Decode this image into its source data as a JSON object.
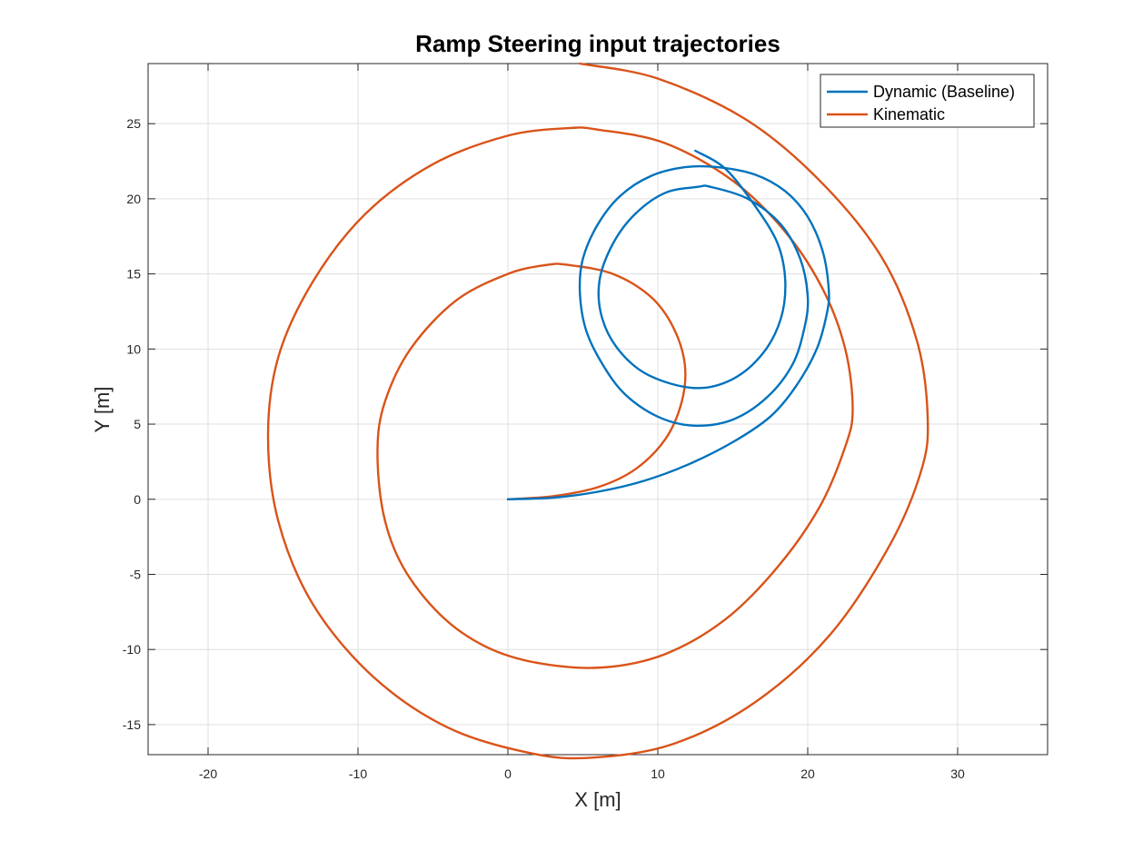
{
  "chart_data": {
    "type": "line",
    "title": "Ramp Steering input trajectories",
    "xlabel": "X [m]",
    "ylabel": "Y [m]",
    "xlim": [
      -24,
      36
    ],
    "ylim": [
      -17,
      29
    ],
    "xticks": [
      -20,
      -10,
      0,
      10,
      20,
      30
    ],
    "yticks": [
      -15,
      -10,
      -5,
      0,
      5,
      10,
      15,
      20,
      25
    ],
    "grid": true,
    "legend_position": "top-right",
    "series": [
      {
        "name": "Dynamic (Baseline)",
        "color": "#0072BD",
        "points": [
          [
            0,
            0
          ],
          [
            3,
            0.1
          ],
          [
            6,
            0.5
          ],
          [
            9,
            1.2
          ],
          [
            12,
            2.3
          ],
          [
            15,
            3.8
          ],
          [
            17.5,
            5.5
          ],
          [
            19.2,
            7.5
          ],
          [
            20.6,
            10.0
          ],
          [
            21.3,
            12.5
          ],
          [
            21.4,
            14.0
          ],
          [
            21.0,
            16.5
          ],
          [
            20.0,
            18.8
          ],
          [
            18.5,
            20.5
          ],
          [
            16.5,
            21.6
          ],
          [
            14.0,
            22.1
          ],
          [
            11.8,
            22.1
          ],
          [
            9.5,
            21.5
          ],
          [
            7.5,
            20.2
          ],
          [
            6.0,
            18.3
          ],
          [
            5.0,
            16.0
          ],
          [
            4.8,
            13.8
          ],
          [
            5.2,
            11.3
          ],
          [
            6.3,
            9.0
          ],
          [
            7.8,
            7.0
          ],
          [
            10.0,
            5.5
          ],
          [
            12.4,
            4.9
          ],
          [
            15.0,
            5.3
          ],
          [
            17.3,
            6.8
          ],
          [
            19.0,
            9.0
          ],
          [
            19.8,
            11.5
          ],
          [
            20.0,
            13.5
          ],
          [
            19.5,
            16.0
          ],
          [
            18.2,
            18.3
          ],
          [
            16.0,
            20.0
          ],
          [
            13.5,
            20.8
          ],
          [
            12.7,
            20.8
          ],
          [
            10.5,
            20.4
          ],
          [
            8.5,
            19.0
          ],
          [
            7.0,
            17.0
          ],
          [
            6.1,
            14.5
          ],
          [
            6.3,
            12.0
          ],
          [
            7.5,
            9.8
          ],
          [
            9.5,
            8.2
          ],
          [
            12.5,
            7.4
          ],
          [
            15.0,
            8.0
          ],
          [
            17.0,
            9.7
          ],
          [
            18.2,
            12.0
          ],
          [
            18.5,
            14.5
          ],
          [
            18.0,
            17.0
          ],
          [
            16.5,
            19.5
          ],
          [
            14.5,
            22.0
          ],
          [
            12.5,
            23.2
          ]
        ]
      },
      {
        "name": "Kinematic",
        "color": "#D95319",
        "points": [
          [
            0,
            0
          ],
          [
            3,
            0.2
          ],
          [
            6,
            0.8
          ],
          [
            8.5,
            2.0
          ],
          [
            10.5,
            4.0
          ],
          [
            11.6,
            6.5
          ],
          [
            11.8,
            9.0
          ],
          [
            11.0,
            11.5
          ],
          [
            9.5,
            13.5
          ],
          [
            7.0,
            15.0
          ],
          [
            4.0,
            15.6
          ],
          [
            2.6,
            15.6
          ],
          [
            0,
            15.0
          ],
          [
            -3.5,
            13.2
          ],
          [
            -6.5,
            10.0
          ],
          [
            -8.2,
            6.5
          ],
          [
            -8.7,
            3.3
          ],
          [
            -8.3,
            -1.0
          ],
          [
            -7.0,
            -4.5
          ],
          [
            -4.5,
            -7.7
          ],
          [
            -1.5,
            -9.8
          ],
          [
            2.0,
            -10.9
          ],
          [
            6.3,
            -11.2
          ],
          [
            10.5,
            -10.3
          ],
          [
            14.5,
            -8.0
          ],
          [
            18.0,
            -4.5
          ],
          [
            20.8,
            -0.5
          ],
          [
            22.5,
            3.5
          ],
          [
            23.0,
            6.0
          ],
          [
            22.5,
            10.0
          ],
          [
            21.0,
            14.0
          ],
          [
            18.5,
            17.8
          ],
          [
            15.0,
            21.2
          ],
          [
            10.5,
            23.7
          ],
          [
            6.0,
            24.6
          ],
          [
            4.0,
            24.7
          ],
          [
            0,
            24.2
          ],
          [
            -5.0,
            22.3
          ],
          [
            -9.5,
            19.0
          ],
          [
            -13.0,
            14.5
          ],
          [
            -15.3,
            9.5
          ],
          [
            -16.0,
            4.2
          ],
          [
            -15.3,
            -1.5
          ],
          [
            -13.0,
            -7.0
          ],
          [
            -9.0,
            -11.8
          ],
          [
            -4.0,
            -15.2
          ],
          [
            1.5,
            -16.9
          ],
          [
            5.6,
            -17.2
          ],
          [
            11.0,
            -16.3
          ],
          [
            16.5,
            -13.5
          ],
          [
            21.5,
            -9.0
          ],
          [
            25.5,
            -3.0
          ],
          [
            27.6,
            2.0
          ],
          [
            28.0,
            5.5
          ],
          [
            27.3,
            10.5
          ],
          [
            25.0,
            16.0
          ],
          [
            21.0,
            21.0
          ],
          [
            16.0,
            25.2
          ],
          [
            10.0,
            28.0
          ],
          [
            4.8,
            29.0
          ]
        ]
      }
    ]
  }
}
